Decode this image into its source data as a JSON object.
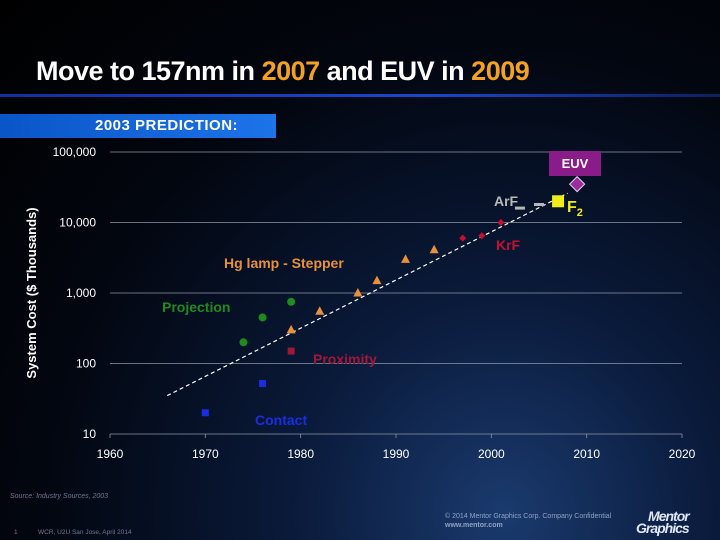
{
  "slide": {
    "title_part1": "Move to 157nm in ",
    "title_year1": "2007",
    "title_part2": " and EUV in ",
    "title_year2": "2009",
    "banner": "2003 PREDICTION:",
    "accent_color": "#f4a020",
    "banner_color": "#1c74e8"
  },
  "chart_data": {
    "type": "scatter",
    "title": "",
    "xlabel": "",
    "ylabel": "System Cost ($ Thousands)",
    "xlim": [
      1960,
      2020
    ],
    "ylim": [
      10,
      100000
    ],
    "y_scale": "log",
    "x_ticks": [
      1960,
      1970,
      1980,
      1990,
      2000,
      2010,
      2020
    ],
    "y_ticks": [
      10,
      100,
      1000,
      10000,
      100000
    ],
    "y_tick_labels": [
      "10",
      "100",
      "1,000",
      "10,000",
      "100,000"
    ],
    "grid": "horizontal",
    "series": [
      {
        "name": "Contact",
        "color": "#1a2ee0",
        "marker": "square",
        "points": [
          [
            1970,
            20
          ],
          [
            1976,
            52
          ]
        ]
      },
      {
        "name": "Proximity",
        "color": "#a01838",
        "marker": "square",
        "points": [
          [
            1979,
            150
          ]
        ]
      },
      {
        "name": "Projection",
        "color": "#1f8a1f",
        "marker": "circle",
        "points": [
          [
            1974,
            200
          ],
          [
            1976,
            450
          ],
          [
            1979,
            750
          ]
        ]
      },
      {
        "name": "Hg lamp - Stepper",
        "color": "#e8913a",
        "marker": "triangle",
        "points": [
          [
            1979,
            300
          ],
          [
            1982,
            550
          ],
          [
            1986,
            1000
          ],
          [
            1988,
            1500
          ],
          [
            1991,
            3000
          ],
          [
            1994,
            4100
          ]
        ]
      },
      {
        "name": "KrF",
        "color": "#c8102e",
        "marker": "diamond",
        "points": [
          [
            1997,
            6000
          ],
          [
            1999,
            6500
          ],
          [
            2001,
            10000
          ]
        ]
      },
      {
        "name": "ArF",
        "color": "#b8b8b8",
        "marker": "dash",
        "points": [
          [
            2003,
            16000
          ],
          [
            2005,
            18000
          ]
        ]
      },
      {
        "name": "F2",
        "color": "#f0ec18",
        "marker": "square",
        "points": [
          [
            2007,
            20000
          ]
        ]
      },
      {
        "name": "EUV",
        "color": "#9b2c9b",
        "marker": "diamond",
        "points": [
          [
            2009,
            35000
          ]
        ]
      }
    ],
    "trendline": {
      "x": [
        1966,
        2008
      ],
      "y": [
        35,
        26000
      ],
      "style": "dashed",
      "color": "#ffffff"
    },
    "annotations": [
      {
        "text": "Contact",
        "color": "#1a2ee0"
      },
      {
        "text": "Proximity",
        "color": "#a01838"
      },
      {
        "text": "Projection",
        "color": "#1f8a1f"
      },
      {
        "text": "Hg lamp - Stepper",
        "color": "#e8913a"
      },
      {
        "text": "KrF",
        "color": "#c8102e"
      },
      {
        "text": "ArF",
        "color": "#b8b8b8"
      },
      {
        "text": "F",
        "subscript": "2",
        "color": "#f0ec18"
      },
      {
        "text": "EUV",
        "color": "#ffffff",
        "box_color": "#8a1c8a"
      }
    ]
  },
  "footer": {
    "source": "Source:  Industry Sources, 2003",
    "slide_number": "1",
    "conference": "WCR, U2U San Jose, April 2014",
    "copyright": "© 2014 Mentor Graphics Corp.    Company Confidential",
    "website": "www.mentor.com",
    "logo_line1": "Mentor",
    "logo_line2": "Graphics"
  }
}
